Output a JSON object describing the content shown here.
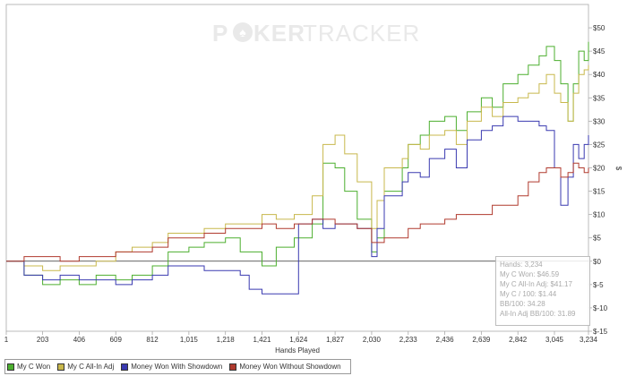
{
  "watermark": {
    "part1": "P",
    "part2": "KER",
    "part3": "TRACKER"
  },
  "chart_data": {
    "type": "line",
    "xlabel": "Hands Played",
    "ylabel": "$",
    "xlim": [
      1,
      3234
    ],
    "ylim": [
      -15,
      55
    ],
    "x_ticks": [
      "1",
      "203",
      "406",
      "609",
      "812",
      "1,015",
      "1,218",
      "1,421",
      "1,624",
      "1,827",
      "2,030",
      "2,233",
      "2,436",
      "2,639",
      "2,842",
      "3,045",
      "3,234"
    ],
    "y_ticks": [
      {
        "value": 50,
        "label": "$50"
      },
      {
        "value": 45,
        "label": "$45"
      },
      {
        "value": 40,
        "label": "$40"
      },
      {
        "value": 35,
        "label": "$35"
      },
      {
        "value": 30,
        "label": "$30"
      },
      {
        "value": 25,
        "label": "$25"
      },
      {
        "value": 20,
        "label": "$20"
      },
      {
        "value": 15,
        "label": "$15"
      },
      {
        "value": 10,
        "label": "$10"
      },
      {
        "value": 5,
        "label": "$5"
      },
      {
        "value": 0,
        "label": "$0"
      },
      {
        "value": -5,
        "label": "$-5"
      },
      {
        "value": -10,
        "label": "$-10"
      },
      {
        "value": -15,
        "label": "$-15"
      }
    ],
    "series": [
      {
        "name": "My C Won",
        "color": "#4caf2f",
        "x": [
          1,
          100,
          203,
          300,
          406,
          500,
          609,
          700,
          812,
          900,
          1015,
          1100,
          1218,
          1300,
          1421,
          1500,
          1600,
          1700,
          1760,
          1827,
          1880,
          1950,
          2030,
          2060,
          2100,
          2200,
          2233,
          2300,
          2350,
          2436,
          2500,
          2560,
          2639,
          2700,
          2760,
          2842,
          2900,
          2960,
          3000,
          3045,
          3080,
          3120,
          3150,
          3180,
          3210,
          3234
        ],
        "y": [
          0,
          -3,
          -5,
          -4,
          -5,
          -3,
          -4,
          -3,
          -1,
          2,
          3,
          4,
          5,
          2,
          -1,
          3,
          5,
          8,
          21,
          20,
          15,
          9,
          2,
          5,
          15,
          20,
          25,
          27,
          30,
          31,
          28,
          32,
          35,
          33,
          38,
          40,
          42,
          44,
          46,
          43,
          38,
          30,
          38,
          45,
          43,
          47
        ]
      },
      {
        "name": "My C All-In Adj",
        "color": "#c8b84c",
        "x": [
          1,
          100,
          203,
          300,
          406,
          500,
          609,
          700,
          812,
          900,
          1015,
          1100,
          1218,
          1300,
          1421,
          1500,
          1600,
          1700,
          1760,
          1827,
          1880,
          1950,
          2030,
          2060,
          2100,
          2200,
          2233,
          2300,
          2350,
          2436,
          2500,
          2560,
          2639,
          2700,
          2760,
          2842,
          2900,
          2960,
          3000,
          3045,
          3080,
          3120,
          3150,
          3180,
          3210,
          3234
        ],
        "y": [
          0,
          -1,
          -2,
          -1,
          -1,
          0,
          2,
          3,
          4,
          6,
          6,
          7,
          8,
          8,
          10,
          9,
          10,
          14,
          25,
          27,
          23,
          17,
          7,
          13,
          20,
          22,
          25,
          24,
          27,
          28,
          25,
          30,
          33,
          31,
          34,
          35,
          36,
          38,
          40,
          36,
          34,
          30,
          36,
          40,
          41,
          42
        ]
      },
      {
        "name": "Money Won With Showdown",
        "color": "#3a3ab0",
        "x": [
          1,
          100,
          203,
          300,
          406,
          500,
          609,
          700,
          812,
          900,
          1015,
          1100,
          1218,
          1300,
          1350,
          1421,
          1500,
          1600,
          1624,
          1700,
          1760,
          1827,
          1880,
          1950,
          2030,
          2060,
          2100,
          2200,
          2233,
          2300,
          2350,
          2436,
          2500,
          2560,
          2639,
          2700,
          2760,
          2842,
          2900,
          2960,
          3000,
          3045,
          3080,
          3120,
          3150,
          3180,
          3210,
          3234
        ],
        "y": [
          0,
          -3,
          -4,
          -3,
          -4,
          -4,
          -5,
          -4,
          -3,
          -1,
          -1,
          -2,
          -2,
          -3,
          -6,
          -7,
          -7,
          -7,
          8,
          9,
          7,
          8,
          8,
          7,
          1,
          7,
          14,
          17,
          19,
          18,
          22,
          24,
          20,
          26,
          28,
          29,
          31,
          30,
          30,
          29,
          28,
          20,
          12,
          18,
          25,
          22,
          25,
          27
        ]
      },
      {
        "name": "Money Won Without Showdown",
        "color": "#b03a2e",
        "x": [
          1,
          100,
          203,
          300,
          406,
          500,
          609,
          700,
          812,
          900,
          1015,
          1100,
          1218,
          1300,
          1421,
          1500,
          1600,
          1700,
          1827,
          1950,
          2030,
          2100,
          2233,
          2300,
          2436,
          2500,
          2639,
          2700,
          2842,
          2900,
          2960,
          3000,
          3045,
          3080,
          3120,
          3150,
          3180,
          3210,
          3234
        ],
        "y": [
          0,
          1,
          1,
          0,
          1,
          1,
          2,
          2,
          3,
          5,
          5,
          6,
          7,
          7,
          8,
          7,
          8,
          9,
          8,
          7,
          4,
          5,
          7,
          8,
          9,
          10,
          10,
          12,
          14,
          17,
          19,
          20,
          20,
          18,
          19,
          21,
          20,
          19,
          20
        ]
      }
    ],
    "legend_position": "bottom-left",
    "grid": false
  },
  "stats": {
    "hands": "Hands: 3,234",
    "won": "My C Won: $46.59",
    "adj": "My C All-In Adj: $41.17",
    "per100": "My C / 100: $1.44",
    "bb100": "BB/100: 34.28",
    "adj_bb100": "All-In Adj BB/100: 31.89"
  }
}
